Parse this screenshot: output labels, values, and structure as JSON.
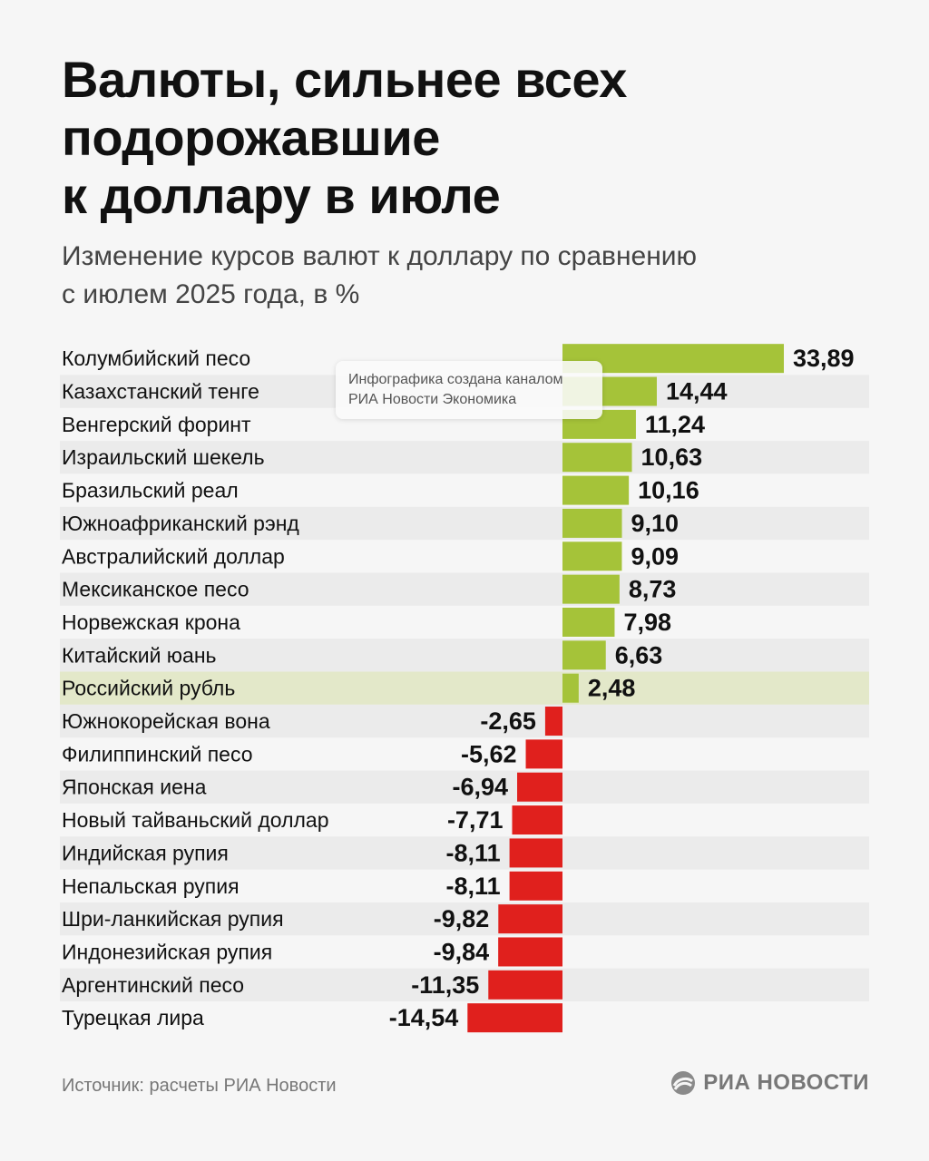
{
  "header": {
    "title_lines": [
      "Валюты, сильнее всех",
      "подорожавшие",
      "к доллару в июле"
    ],
    "subtitle_lines": [
      "Изменение курсов валют к доллару по сравнению",
      "с июлем 2025 года, в %"
    ]
  },
  "watermark": {
    "lines": [
      "Инфографика создана каналом",
      "РИА Новости Экономика"
    ]
  },
  "footer": {
    "source": "Источник: расчеты РИА Новости",
    "logo_text": "РИА НОВОСТИ"
  },
  "colors": {
    "positive": "#a5c339",
    "negative": "#e0201d",
    "row_alt": "#ebebeb",
    "row_highlight": "#e3e8c9"
  },
  "chart_data": {
    "type": "bar",
    "orientation": "horizontal",
    "highlight_category": "Российский рубль",
    "categories": [
      "Колумбийский песо",
      "Казахстанский тенге",
      "Венгерский форинт",
      "Израильский шекель",
      "Бразильский реал",
      "Южноафриканский рэнд",
      "Австралийский доллар",
      "Мексиканское песо",
      "Норвежская крона",
      "Китайский юань",
      "Российский рубль",
      "Южнокорейская вона",
      "Филиппинский песо",
      "Японская иена",
      "Новый тайваньский доллар",
      "Индийская рупия",
      "Непальская рупия",
      "Шри-ланкийская рупия",
      "Индонезийская рупия",
      "Аргентинский песо",
      "Турецкая лира"
    ],
    "values": [
      33.89,
      14.44,
      11.24,
      10.63,
      10.16,
      9.1,
      9.09,
      8.73,
      7.98,
      6.63,
      2.48,
      -2.65,
      -5.62,
      -6.94,
      -7.71,
      -8.11,
      -8.11,
      -9.82,
      -9.84,
      -11.35,
      -14.54
    ],
    "labels": [
      "33,89",
      "14,44",
      "11,24",
      "10,63",
      "10,16",
      "9,10",
      "9,09",
      "8,73",
      "7,98",
      "6,63",
      "2,48",
      "-2,65",
      "-5,62",
      "-6,94",
      "-7,71",
      "-8,11",
      "-8,11",
      "-9,82",
      "-9,84",
      "-11,35",
      "-14,54"
    ]
  }
}
